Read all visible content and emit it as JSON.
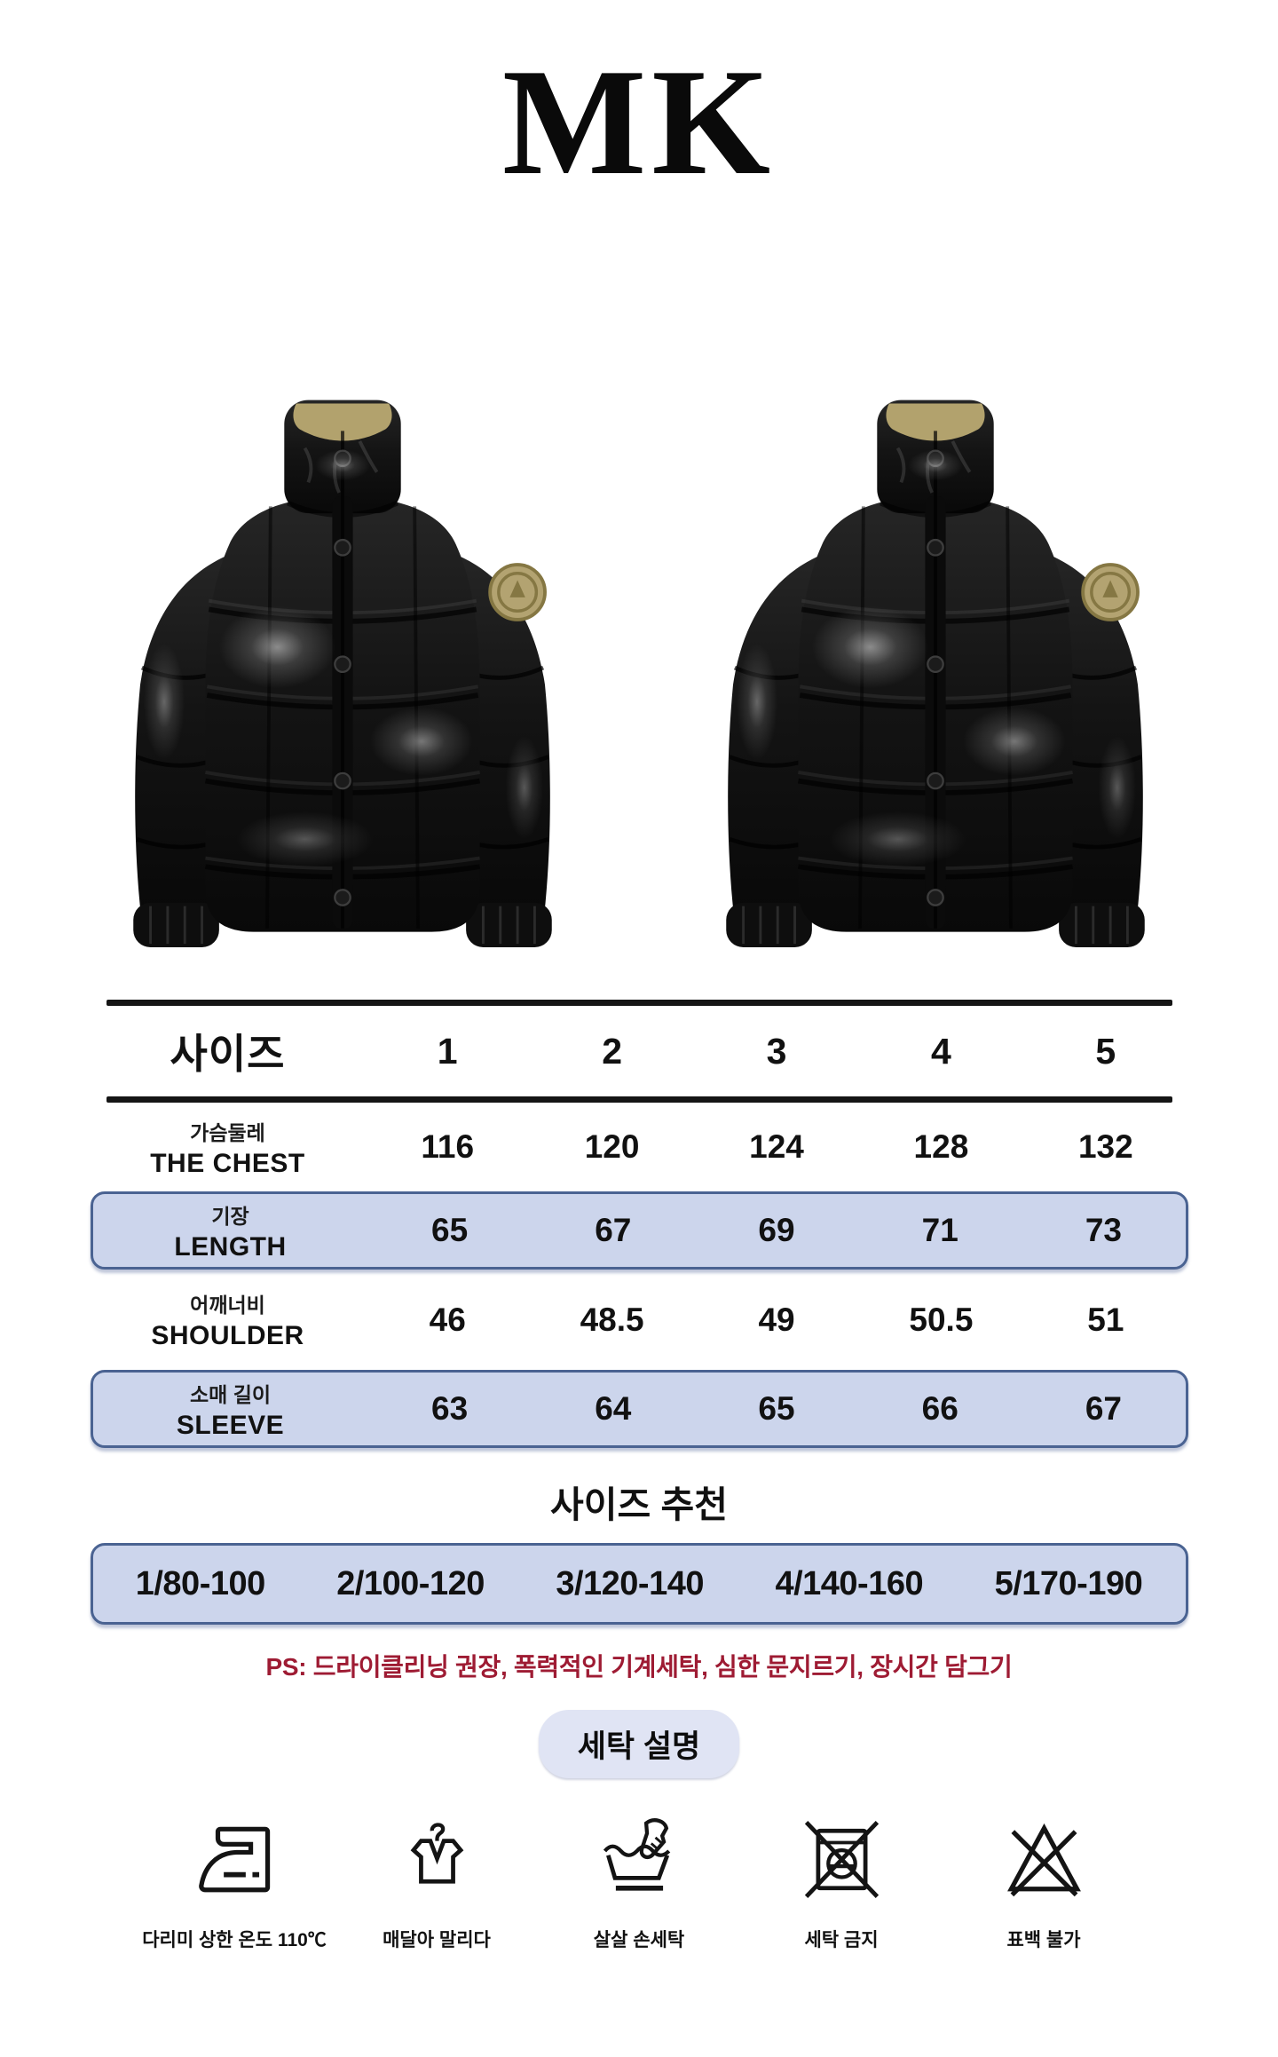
{
  "brand": "MK",
  "photos": [
    {
      "name": "jacket-front-photo-1",
      "alt": "glossy black puffer jacket, front view"
    },
    {
      "name": "jacket-front-photo-2",
      "alt": "glossy black puffer jacket, front view"
    }
  ],
  "size_table": {
    "header_label": "사이즈",
    "sizes": [
      "1",
      "2",
      "3",
      "4",
      "5"
    ],
    "rows": [
      {
        "label_ko": "가슴둘레",
        "label_en": "THE CHEST",
        "values": [
          "116",
          "120",
          "124",
          "128",
          "132"
        ],
        "highlight": false
      },
      {
        "label_ko": "기장",
        "label_en": "LENGTH",
        "values": [
          "65",
          "67",
          "69",
          "71",
          "73"
        ],
        "highlight": true
      },
      {
        "label_ko": "어깨너비",
        "label_en": "SHOULDER",
        "values": [
          "46",
          "48.5",
          "49",
          "50.5",
          "51"
        ],
        "highlight": false
      },
      {
        "label_ko": "소매 길이",
        "label_en": "SLEEVE",
        "values": [
          "63",
          "64",
          "65",
          "66",
          "67"
        ],
        "highlight": true
      }
    ]
  },
  "recommendation": {
    "title": "사이즈 추천",
    "ranges": [
      "1/80-100",
      "2/100-120",
      "3/120-140",
      "4/140-160",
      "5/170-190"
    ]
  },
  "care_note": "PS: 드라이클리닝 권장, 폭력적인 기계세탁, 심한 문지르기, 장시간 담그기",
  "care": {
    "badge": "세탁 설명",
    "items": [
      {
        "icon": "iron-low-heat-icon",
        "label": "다리미 상한 온도 110℃"
      },
      {
        "icon": "hang-dry-icon",
        "label": "매달아 말리다"
      },
      {
        "icon": "hand-wash-icon",
        "label": "살살 손세탁"
      },
      {
        "icon": "no-machine-wash-icon",
        "label": "세탁 금지"
      },
      {
        "icon": "no-bleach-icon",
        "label": "표백 불가"
      }
    ]
  },
  "colors": {
    "highlight_fill": "#ccd5ec",
    "highlight_border": "#4a6392",
    "badge_fill": "#e0e4f4",
    "warning_text": "#9e1b33",
    "rule": "#151515",
    "patch_gold": "#b3a371",
    "collar_lining": "#b2a26d"
  }
}
